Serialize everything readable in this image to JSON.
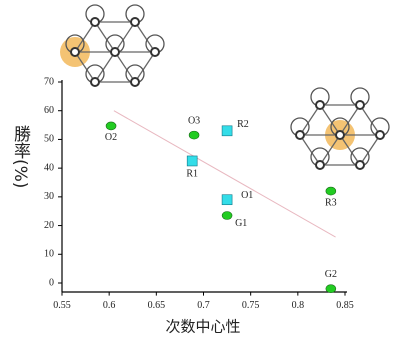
{
  "chart_data": {
    "type": "scatter",
    "x_label": "次数中心性",
    "y_label": "勝率(%)",
    "xlim": [
      0.55,
      0.85
    ],
    "ylim": [
      -3,
      70
    ],
    "xticks": [
      0.55,
      0.6,
      0.65,
      0.7,
      0.75,
      0.8,
      0.85
    ],
    "yticks": [
      0,
      10,
      20,
      30,
      40,
      50,
      60,
      70
    ],
    "series": [
      {
        "color": "#22cc22",
        "marker": "circle",
        "x": [
          0.602,
          0.69,
          0.725,
          0.835,
          0.835
        ],
        "values": [
          54.7,
          51.5,
          23.5,
          32,
          -2
        ],
        "point_labels": [
          "O2",
          "O3",
          "G1",
          "R3",
          "G2"
        ]
      },
      {
        "color": "#33dde8",
        "marker": "square",
        "x": [
          0.725,
          0.688,
          0.725
        ],
        "values": [
          53,
          42.5,
          29
        ],
        "point_labels": [
          "R2",
          "R1",
          "O1"
        ]
      }
    ],
    "trendline": {
      "color": "#e8b8c0",
      "x": [
        0.605,
        0.84
      ],
      "values": [
        60,
        16
      ]
    }
  }
}
